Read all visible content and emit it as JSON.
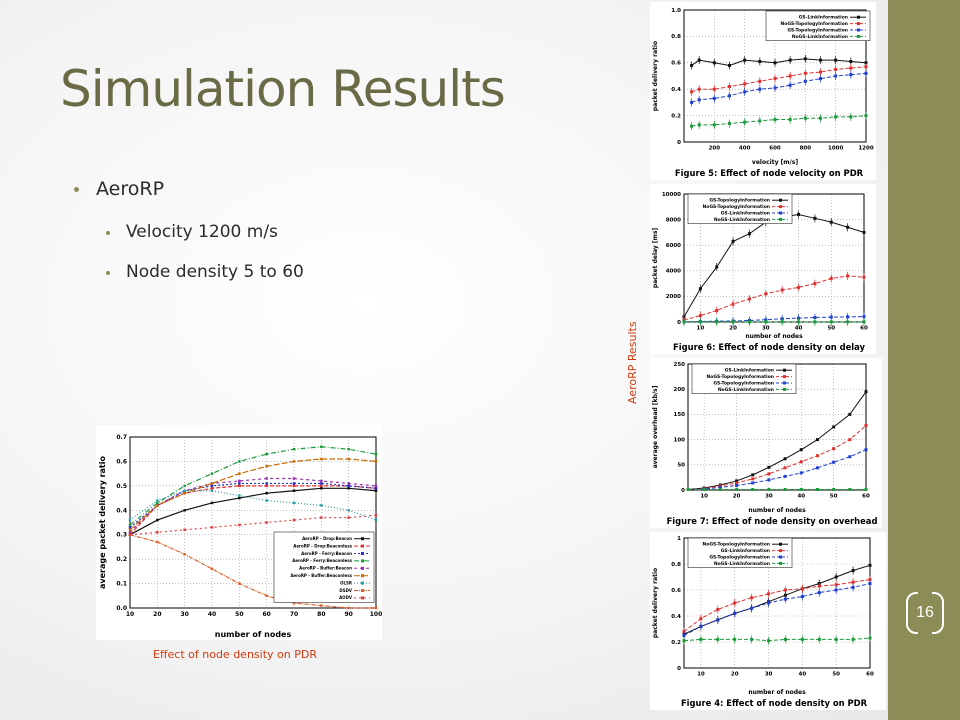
{
  "slide": {
    "title": "Simulation Results",
    "page_number": "16",
    "bullets": [
      {
        "text": "AeroRP",
        "sub": [
          "Velocity 1200 m/s",
          "Node density 5 to 60"
        ]
      }
    ],
    "caption_left": "Effect of node density on PDR",
    "caption_right": "AeroRP Results",
    "accent": "#8c8c57",
    "caption_color": "#d23a0e"
  },
  "chart_data": [
    {
      "type": "line",
      "xlabel": "number of nodes",
      "ylabel": "average packet delivery ratio",
      "x": [
        10,
        20,
        30,
        40,
        50,
        60,
        70,
        80,
        90,
        100
      ],
      "ylim": [
        0,
        0.7
      ],
      "yticks": [
        "0.0",
        "0.1",
        "0.2",
        "0.3",
        "0.4",
        "0.5",
        "0.6",
        "0.7"
      ],
      "xticks": [
        "10",
        "20",
        "30",
        "40",
        "50",
        "60",
        "70",
        "80",
        "90",
        "100"
      ],
      "legend_position": "bottom-right",
      "grid": true,
      "series": [
        {
          "name": "AeroRP - Drop:Beacon",
          "color": "#111111",
          "values": [
            0.3,
            0.36,
            0.4,
            0.43,
            0.45,
            0.47,
            0.48,
            0.49,
            0.49,
            0.48
          ]
        },
        {
          "name": "AeroRP - Drop:Beaconless",
          "color": "#e03030",
          "values": [
            0.3,
            0.42,
            0.47,
            0.49,
            0.5,
            0.5,
            0.5,
            0.5,
            0.5,
            0.49
          ]
        },
        {
          "name": "AeroRP - Ferry:Beacon",
          "color": "#2233cc",
          "values": [
            0.33,
            0.42,
            0.48,
            0.5,
            0.51,
            0.51,
            0.51,
            0.51,
            0.5,
            0.49
          ]
        },
        {
          "name": "AeroRP - Ferry:Beaconless",
          "color": "#1a9a3a",
          "values": [
            0.34,
            0.43,
            0.5,
            0.55,
            0.6,
            0.63,
            0.65,
            0.66,
            0.65,
            0.63
          ]
        },
        {
          "name": "AeroRP - Buffer:Beacon",
          "color": "#9933aa",
          "values": [
            0.31,
            0.42,
            0.48,
            0.51,
            0.52,
            0.53,
            0.53,
            0.52,
            0.51,
            0.5
          ]
        },
        {
          "name": "AeroRP - Buffer:Beaconless",
          "color": "#cc6a00",
          "values": [
            0.32,
            0.42,
            0.47,
            0.51,
            0.55,
            0.58,
            0.6,
            0.61,
            0.61,
            0.6
          ]
        },
        {
          "name": "OLSR",
          "color": "#2aa0a8",
          "values": [
            0.36,
            0.44,
            0.48,
            0.48,
            0.46,
            0.44,
            0.43,
            0.42,
            0.4,
            0.36
          ]
        },
        {
          "name": "DSDV",
          "color": "#e06030",
          "values": [
            0.3,
            0.27,
            0.22,
            0.16,
            0.1,
            0.05,
            0.02,
            0.01,
            0.0,
            0.0
          ]
        },
        {
          "name": "AODV",
          "color": "#dd4444",
          "values": [
            0.3,
            0.31,
            0.32,
            0.33,
            0.34,
            0.35,
            0.36,
            0.37,
            0.37,
            0.38
          ]
        }
      ]
    },
    {
      "type": "line",
      "caption": "Figure 5: Effect of node velocity on PDR",
      "xlabel": "velocity [m/s]",
      "ylabel": "packet delivery ratio",
      "x": [
        50,
        100,
        200,
        300,
        400,
        500,
        600,
        700,
        800,
        900,
        1000,
        1100,
        1200
      ],
      "ylim": [
        0,
        1
      ],
      "yticks": [
        "0",
        "0.2",
        "0.4",
        "0.6",
        "0.8",
        "1.0"
      ],
      "xticks": [
        "200",
        "400",
        "600",
        "800",
        "1000",
        "1200"
      ],
      "legend_position": "top-right",
      "grid": true,
      "series": [
        {
          "name": "GS-LinkInformation",
          "color": "#111111",
          "values": [
            0.58,
            0.62,
            0.6,
            0.58,
            0.62,
            0.61,
            0.6,
            0.62,
            0.63,
            0.62,
            0.62,
            0.61,
            0.6
          ]
        },
        {
          "name": "NoGS-TopologyInformation",
          "color": "#e03030",
          "values": [
            0.38,
            0.4,
            0.4,
            0.42,
            0.44,
            0.46,
            0.48,
            0.5,
            0.52,
            0.53,
            0.55,
            0.56,
            0.57
          ]
        },
        {
          "name": "GS-TopologyInformation",
          "color": "#1f3fd0",
          "values": [
            0.3,
            0.32,
            0.33,
            0.35,
            0.38,
            0.4,
            0.41,
            0.43,
            0.46,
            0.48,
            0.5,
            0.51,
            0.52
          ]
        },
        {
          "name": "NoGS-LinkInformation",
          "color": "#1a9a3a",
          "values": [
            0.12,
            0.13,
            0.13,
            0.14,
            0.15,
            0.16,
            0.17,
            0.17,
            0.18,
            0.18,
            0.19,
            0.19,
            0.2
          ]
        }
      ]
    },
    {
      "type": "line",
      "caption": "Figure 6: Effect of node density on delay",
      "xlabel": "number of nodes",
      "ylabel": "packet delay [ms]",
      "x": [
        5,
        10,
        15,
        20,
        25,
        30,
        35,
        40,
        45,
        50,
        55,
        60
      ],
      "ylim": [
        0,
        10000
      ],
      "yticks": [
        "0",
        "2000",
        "4000",
        "6000",
        "8000",
        "10000"
      ],
      "xticks": [
        "10",
        "20",
        "30",
        "40",
        "50",
        "60"
      ],
      "legend_position": "top-left",
      "grid": true,
      "series": [
        {
          "name": "GS-TopologyInformation",
          "color": "#111111",
          "values": [
            400,
            2600,
            4300,
            6300,
            6900,
            7800,
            8200,
            8400,
            8100,
            7800,
            7400,
            7000
          ]
        },
        {
          "name": "NoGS-TopologyInformation",
          "color": "#e03030",
          "values": [
            150,
            500,
            900,
            1400,
            1800,
            2200,
            2500,
            2700,
            3000,
            3400,
            3600,
            3500
          ]
        },
        {
          "name": "GS-LinkInformation",
          "color": "#1f3fd0",
          "values": [
            20,
            40,
            60,
            80,
            120,
            180,
            250,
            300,
            350,
            380,
            400,
            420
          ]
        },
        {
          "name": "NoGS-LinkInformation",
          "color": "#1a9a3a",
          "values": [
            10,
            10,
            10,
            10,
            10,
            10,
            10,
            10,
            10,
            10,
            10,
            10
          ]
        }
      ]
    },
    {
      "type": "line",
      "caption": "Figure 7: Effect of node density on overhead",
      "xlabel": "number of nodes",
      "ylabel": "average overhead [kb/s]",
      "x": [
        5,
        10,
        15,
        20,
        25,
        30,
        35,
        40,
        45,
        50,
        55,
        60
      ],
      "ylim": [
        0,
        250
      ],
      "yticks": [
        "0",
        "50",
        "100",
        "150",
        "200",
        "250"
      ],
      "xticks": [
        "10",
        "20",
        "30",
        "40",
        "50",
        "60"
      ],
      "legend_position": "top-left",
      "grid": true,
      "series": [
        {
          "name": "GS-LinkInformation",
          "color": "#111111",
          "values": [
            1,
            4,
            10,
            18,
            30,
            45,
            62,
            80,
            100,
            125,
            150,
            195
          ]
        },
        {
          "name": "NoGS-TopologyInformation",
          "color": "#e03030",
          "values": [
            1,
            3,
            8,
            14,
            22,
            32,
            44,
            56,
            68,
            82,
            100,
            128
          ]
        },
        {
          "name": "GS-TopologyInformation",
          "color": "#1f3fd0",
          "values": [
            1,
            2,
            5,
            9,
            14,
            20,
            27,
            34,
            44,
            55,
            66,
            80
          ]
        },
        {
          "name": "NoGS-LinkInformation",
          "color": "#1a9a3a",
          "values": [
            1,
            1,
            1,
            1,
            1,
            1,
            1,
            1,
            1,
            1,
            1,
            1
          ]
        }
      ]
    },
    {
      "type": "line",
      "caption": "Figure 4: Effect of node density on PDR",
      "xlabel": "number of nodes",
      "ylabel": "packet delivery ratio",
      "x": [
        5,
        10,
        15,
        20,
        25,
        30,
        35,
        40,
        45,
        50,
        55,
        60
      ],
      "ylim": [
        0,
        1
      ],
      "yticks": [
        "0",
        "0.2",
        "0.4",
        "0.6",
        "0.8",
        "1"
      ],
      "xticks": [
        "10",
        "20",
        "30",
        "40",
        "50",
        "60"
      ],
      "legend_position": "top-left",
      "grid": true,
      "series": [
        {
          "name": "NoGS-TopologyInformation",
          "color": "#111111",
          "values": [
            0.26,
            0.32,
            0.37,
            0.42,
            0.46,
            0.51,
            0.56,
            0.61,
            0.65,
            0.7,
            0.75,
            0.79
          ]
        },
        {
          "name": "GS-LinkInformation",
          "color": "#e03030",
          "values": [
            0.28,
            0.38,
            0.45,
            0.5,
            0.54,
            0.57,
            0.6,
            0.61,
            0.63,
            0.64,
            0.66,
            0.68
          ]
        },
        {
          "name": "GS-TopologyInformation",
          "color": "#1f3fd0",
          "values": [
            0.25,
            0.32,
            0.37,
            0.42,
            0.46,
            0.5,
            0.53,
            0.55,
            0.58,
            0.6,
            0.62,
            0.65
          ]
        },
        {
          "name": "NoGS-LinkInformation",
          "color": "#1a9a3a",
          "values": [
            0.21,
            0.22,
            0.22,
            0.22,
            0.22,
            0.21,
            0.22,
            0.22,
            0.22,
            0.22,
            0.22,
            0.23
          ]
        }
      ]
    }
  ]
}
